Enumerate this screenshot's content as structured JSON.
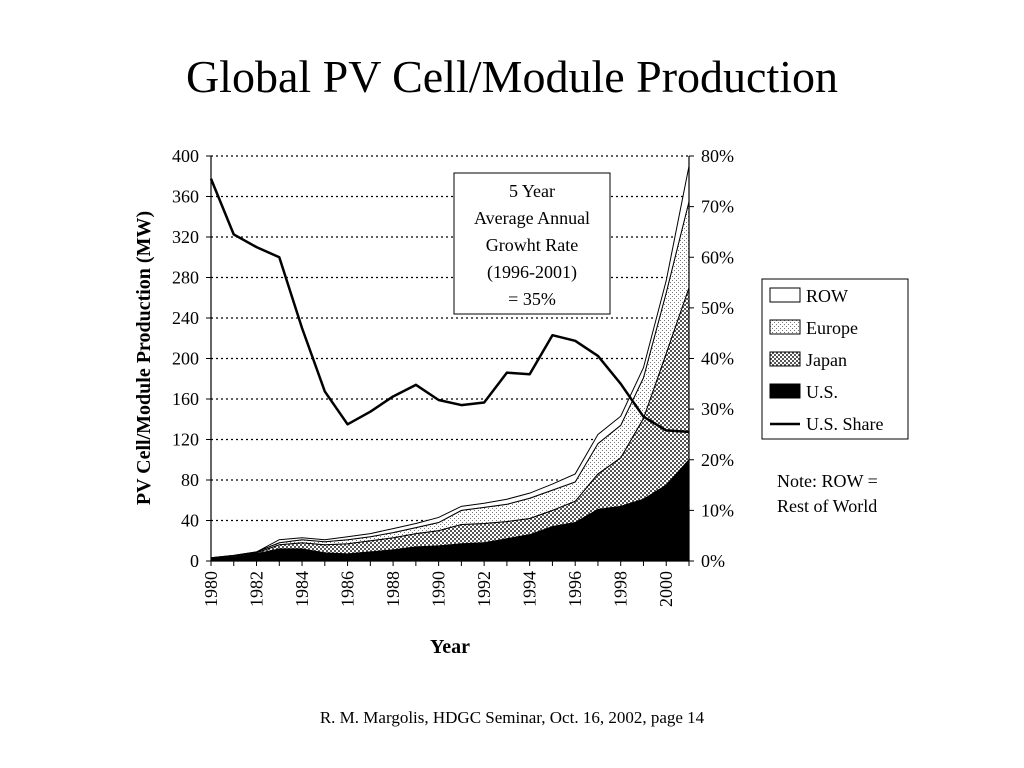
{
  "slide": {
    "title": "Global PV Cell/Module Production",
    "footer": "R. M. Margolis, HDGC Seminar, Oct. 16, 2002, page 14"
  },
  "chart_data": {
    "type": "area",
    "stacked": true,
    "title": "",
    "xlabel": "Year",
    "ylabel": "PV Cell/Module Production (MW)",
    "y2label": "",
    "x": [
      1980,
      1981,
      1982,
      1983,
      1984,
      1985,
      1986,
      1987,
      1988,
      1989,
      1990,
      1991,
      1992,
      1993,
      1994,
      1995,
      1996,
      1997,
      1998,
      1999,
      2000,
      2001
    ],
    "xticks": [
      "1980",
      "1982",
      "1984",
      "1986",
      "1988",
      "1990",
      "1992",
      "1994",
      "1996",
      "1998",
      "2000"
    ],
    "xlim": [
      1980,
      2001
    ],
    "ylim": [
      0,
      400
    ],
    "yticks": [
      "0",
      "40",
      "80",
      "120",
      "160",
      "200",
      "240",
      "280",
      "320",
      "360",
      "400"
    ],
    "y2lim": [
      0,
      80
    ],
    "y2ticks": [
      "0%",
      "10%",
      "20%",
      "30%",
      "40%",
      "50%",
      "60%",
      "70%",
      "80%"
    ],
    "grid": "horizontal dotted",
    "series": [
      {
        "name": "U.S.",
        "kind": "area",
        "fill": "#000000",
        "values": [
          2.5,
          4,
          7,
          12,
          12,
          8,
          7,
          9,
          11,
          14,
          15,
          17,
          18,
          22,
          26,
          34,
          38,
          51,
          54,
          61,
          75,
          100
        ]
      },
      {
        "name": "Japan",
        "kind": "area",
        "fill": "#9a9a9a",
        "values": [
          0.5,
          1,
          1,
          4,
          6,
          8,
          10,
          11,
          12,
          13,
          15,
          19,
          19,
          17,
          16,
          16,
          21,
          35,
          48,
          80,
          130,
          170
        ]
      },
      {
        "name": "Europe",
        "kind": "area",
        "fill": "#dcdcdc",
        "values": [
          0.2,
          0.5,
          1,
          2,
          3,
          3,
          4,
          4,
          5,
          6,
          8,
          14,
          16,
          17,
          20,
          20,
          19,
          30,
          32,
          40,
          60,
          85
        ]
      },
      {
        "name": "ROW",
        "kind": "area",
        "fill": "#ffffff",
        "values": [
          0,
          0,
          0,
          3,
          2,
          2,
          3,
          3,
          4,
          4,
          5,
          4,
          4,
          5,
          5,
          6,
          8,
          9,
          9,
          10,
          12,
          35
        ]
      },
      {
        "name": "U.S. Share",
        "kind": "line",
        "axis": "right",
        "values": [
          75.5,
          64.5,
          62,
          60,
          46,
          33.5,
          27,
          29.5,
          32.5,
          34.8,
          31.8,
          30.8,
          31.3,
          37.2,
          36.9,
          44.6,
          43.5,
          40.5,
          35,
          28.5,
          25.8,
          25.5
        ]
      }
    ],
    "legend": {
      "position": "right",
      "items": [
        "ROW",
        "Europe",
        "Japan",
        "U.S.",
        "U.S. Share"
      ]
    },
    "annotations": [
      {
        "id": "growth-box",
        "lines": [
          "5 Year",
          "Average Annual",
          "Growht Rate",
          "(1996-2001)",
          "= 35%"
        ]
      },
      {
        "id": "note",
        "lines": [
          "Note:  ROW =",
          "Rest of World"
        ]
      }
    ]
  }
}
